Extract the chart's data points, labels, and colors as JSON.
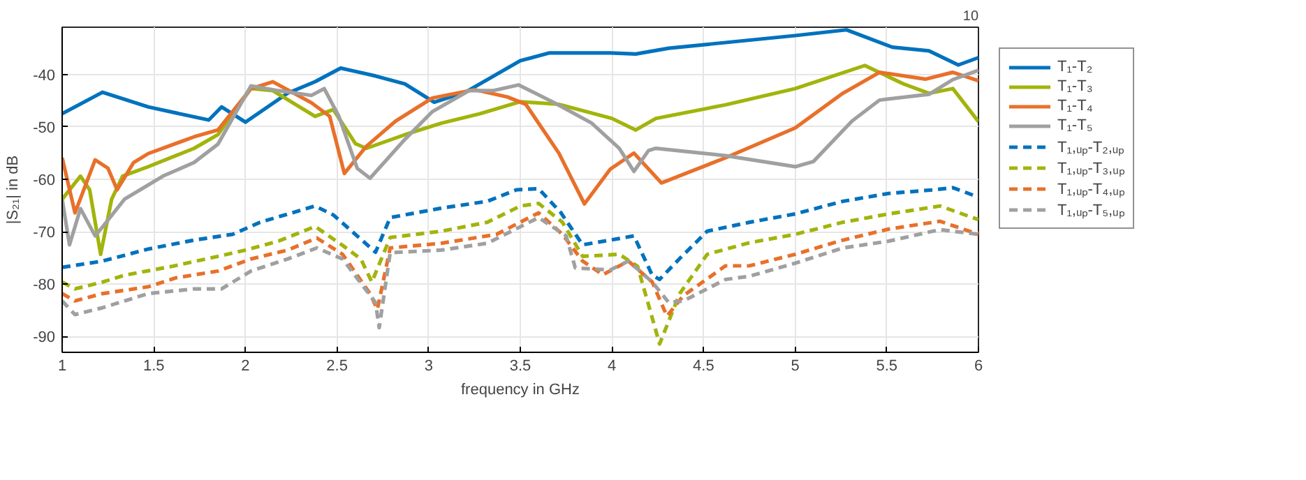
{
  "chart_data": {
    "type": "line",
    "xlabel": "frequency in GHz",
    "ylabel": "|S₂₁| in dB",
    "annotations": [
      "10"
    ],
    "xlim": [
      1,
      6
    ],
    "ylim": [
      -93,
      -31
    ],
    "xticks": [
      1,
      1.5,
      2,
      2.5,
      3,
      3.5,
      4,
      4.5,
      5,
      5.5,
      6
    ],
    "yticks": [
      -90,
      -80,
      -70,
      -60,
      -50,
      -40
    ],
    "grid": true,
    "legend": "right",
    "marker": "none",
    "series": [
      {
        "name": "T₁-T₂",
        "color": "#0072bd",
        "line_style": "solid",
        "x": [
          1,
          1.22,
          1.47,
          1.8,
          1.87,
          2.0,
          2.23,
          2.38,
          2.52,
          2.71,
          2.87,
          3.03,
          3.2,
          3.5,
          3.66,
          3.99,
          4.13,
          4.31,
          5.0,
          5.28,
          5.53,
          5.73,
          5.89,
          6
        ],
        "values": [
          -47.5,
          -43.4,
          -46.2,
          -48.7,
          -46.2,
          -49.1,
          -43.6,
          -41.4,
          -38.8,
          -40.3,
          -41.8,
          -45.3,
          -43.4,
          -37.4,
          -35.9,
          -35.9,
          -36.1,
          -35.0,
          -32.6,
          -31.5,
          -34.8,
          -35.5,
          -38.2,
          -36.8
        ]
      },
      {
        "name": "T₁-T₃",
        "color": "#a2b40c",
        "line_style": "solid",
        "x": [
          1,
          1.1,
          1.15,
          1.21,
          1.27,
          1.33,
          1.47,
          1.72,
          1.85,
          2.03,
          2.15,
          2.38,
          2.48,
          2.6,
          2.66,
          2.87,
          3.07,
          3.28,
          3.5,
          3.71,
          4.0,
          4.13,
          4.24,
          4.62,
          5.0,
          5.38,
          5.59,
          5.73,
          5.86,
          6
        ],
        "values": [
          -63.8,
          -59.4,
          -62.0,
          -74.3,
          -63.8,
          -59.4,
          -57.6,
          -54.1,
          -51.5,
          -42.7,
          -43.1,
          -48.0,
          -46.7,
          -53.2,
          -54.1,
          -51.5,
          -49.3,
          -47.5,
          -45.2,
          -45.7,
          -48.4,
          -50.6,
          -48.4,
          -45.8,
          -42.7,
          -38.3,
          -41.8,
          -43.6,
          -42.7,
          -49.0
        ]
      },
      {
        "name": "T₁-T₄",
        "color": "#e8702a",
        "line_style": "solid",
        "x": [
          1,
          1.07,
          1.18,
          1.25,
          1.3,
          1.39,
          1.47,
          1.72,
          1.85,
          2.03,
          2.15,
          2.36,
          2.46,
          2.54,
          2.66,
          2.82,
          3.02,
          3.25,
          3.43,
          3.53,
          3.71,
          3.85,
          3.99,
          4.12,
          4.27,
          4.62,
          5.0,
          5.26,
          5.46,
          5.71,
          5.86,
          6
        ],
        "values": [
          -55.9,
          -66.4,
          -56.3,
          -57.9,
          -62.0,
          -56.8,
          -55.1,
          -51.9,
          -50.6,
          -42.7,
          -41.4,
          -45.4,
          -48.0,
          -58.9,
          -53.7,
          -48.9,
          -44.5,
          -42.9,
          -44.3,
          -45.7,
          -55.0,
          -64.7,
          -58.1,
          -55.0,
          -60.7,
          -55.9,
          -50.2,
          -43.6,
          -39.6,
          -40.9,
          -39.6,
          -41.2
        ]
      },
      {
        "name": "T₁-T₅",
        "color": "#a0a0a0",
        "line_style": "solid",
        "x": [
          1,
          1.04,
          1.1,
          1.18,
          1.22,
          1.34,
          1.55,
          1.72,
          1.85,
          2.03,
          2.18,
          2.36,
          2.43,
          2.51,
          2.61,
          2.68,
          2.87,
          3.02,
          3.22,
          3.35,
          3.49,
          3.68,
          3.89,
          4.04,
          4.12,
          4.2,
          4.24,
          4.62,
          5.0,
          5.1,
          5.31,
          5.46,
          5.73,
          5.86,
          6
        ],
        "values": [
          -63.8,
          -72.5,
          -65.6,
          -70.8,
          -69.1,
          -63.8,
          -59.4,
          -56.8,
          -53.3,
          -42.2,
          -43.1,
          -44.0,
          -42.7,
          -48.0,
          -57.9,
          -59.8,
          -52.4,
          -47.1,
          -43.1,
          -43.1,
          -42.0,
          -45.3,
          -49.3,
          -54.1,
          -58.5,
          -54.5,
          -54.1,
          -55.5,
          -57.6,
          -56.6,
          -48.9,
          -44.9,
          -43.8,
          -41.0,
          -39.2
        ]
      },
      {
        "name": "T₁,ᵤₚ-T₂,ᵤₚ",
        "color": "#0072bd",
        "line_style": "dashed",
        "x": [
          1,
          1.22,
          1.47,
          1.72,
          1.93,
          2.08,
          2.38,
          2.48,
          2.71,
          2.79,
          3.07,
          3.32,
          3.48,
          3.6,
          3.72,
          3.84,
          4.04,
          4.12,
          4.22,
          4.26,
          4.37,
          4.52,
          4.75,
          5.0,
          5.26,
          5.51,
          5.76,
          5.86,
          6
        ],
        "values": [
          -76.8,
          -75.6,
          -73.3,
          -71.6,
          -70.5,
          -68.2,
          -65.1,
          -66.8,
          -73.9,
          -67.3,
          -65.5,
          -64.2,
          -62.0,
          -61.8,
          -66.3,
          -72.5,
          -71.3,
          -70.8,
          -78.3,
          -79.1,
          -75.1,
          -69.9,
          -68.2,
          -66.6,
          -64.2,
          -62.7,
          -62.0,
          -61.6,
          -63.4
        ]
      },
      {
        "name": "T₁,ᵤₚ-T₃,ᵤₚ",
        "color": "#a2b40c",
        "line_style": "dashed",
        "x": [
          1,
          1.07,
          1.22,
          1.34,
          1.6,
          1.85,
          2.0,
          2.18,
          2.38,
          2.53,
          2.63,
          2.69,
          2.79,
          3.07,
          3.32,
          3.5,
          3.6,
          3.73,
          3.84,
          4.04,
          4.14,
          4.26,
          4.37,
          4.52,
          4.75,
          5.0,
          5.26,
          5.51,
          5.79,
          6
        ],
        "values": [
          -79.6,
          -80.9,
          -79.6,
          -78.3,
          -76.6,
          -74.7,
          -73.5,
          -71.8,
          -69.0,
          -72.6,
          -75.2,
          -79.6,
          -71.1,
          -69.9,
          -68.2,
          -65.1,
          -64.6,
          -68.2,
          -74.7,
          -74.3,
          -76.6,
          -91.4,
          -81.8,
          -74.3,
          -72.1,
          -70.5,
          -68.2,
          -66.6,
          -65.1,
          -67.7
        ]
      },
      {
        "name": "T₁,ᵤₚ-T₄,ᵤₚ",
        "color": "#e8702a",
        "line_style": "dashed",
        "x": [
          1,
          1.07,
          1.22,
          1.47,
          1.62,
          1.85,
          2.03,
          2.23,
          2.39,
          2.53,
          2.68,
          2.72,
          2.79,
          3.07,
          3.37,
          3.6,
          3.73,
          3.84,
          3.95,
          4.09,
          4.22,
          4.3,
          4.39,
          4.62,
          4.75,
          5.0,
          5.26,
          5.51,
          5.79,
          6
        ],
        "values": [
          -81.8,
          -83.2,
          -81.8,
          -80.5,
          -78.8,
          -77.5,
          -75.2,
          -73.5,
          -71.2,
          -74.3,
          -81.8,
          -84.8,
          -73.1,
          -72.2,
          -70.5,
          -66.4,
          -70.5,
          -75.6,
          -78.2,
          -75.6,
          -79.6,
          -86.1,
          -82.2,
          -76.5,
          -76.5,
          -74.3,
          -71.6,
          -69.5,
          -68.0,
          -70.5
        ]
      },
      {
        "name": "T₁,ᵤₚ-T₅,ᵤₚ",
        "color": "#a0a0a0",
        "line_style": "dashed",
        "x": [
          1,
          1.07,
          1.22,
          1.47,
          1.72,
          1.87,
          2.03,
          2.23,
          2.39,
          2.53,
          2.71,
          2.73,
          2.79,
          3.07,
          3.32,
          3.6,
          3.75,
          3.8,
          3.99,
          4.09,
          4.22,
          4.31,
          4.39,
          4.62,
          4.75,
          5.0,
          5.26,
          5.51,
          5.79,
          6
        ],
        "values": [
          -83.2,
          -85.8,
          -84.5,
          -81.8,
          -80.9,
          -80.9,
          -77.5,
          -75.2,
          -73.1,
          -75.2,
          -83.5,
          -88.3,
          -74.0,
          -73.5,
          -72.2,
          -67.3,
          -70.8,
          -76.9,
          -77.3,
          -75.6,
          -79.6,
          -83.5,
          -83.2,
          -79.1,
          -78.5,
          -76.0,
          -73.1,
          -71.8,
          -69.6,
          -70.5
        ]
      }
    ]
  }
}
